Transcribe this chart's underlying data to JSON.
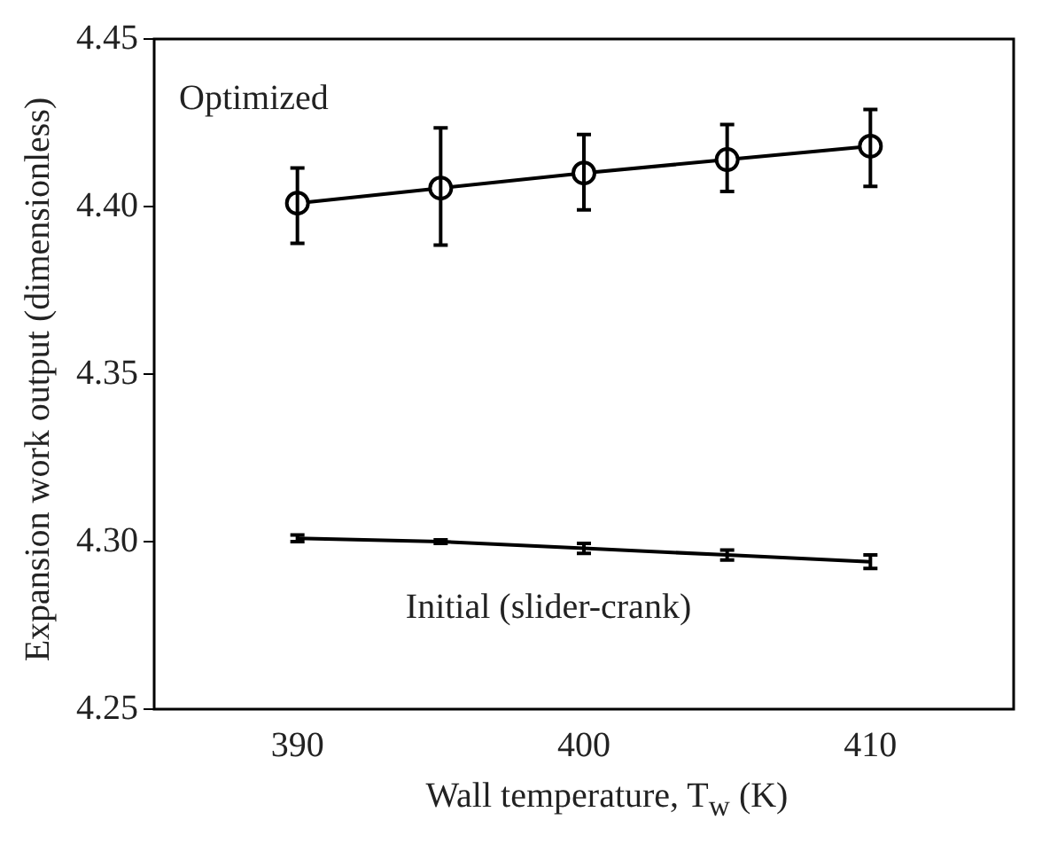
{
  "chart_data": {
    "type": "line",
    "xlabel": "Wall temperature, T$_{w}$ (K)",
    "ylabel": "Expansion work output (dimensionless)",
    "x": [
      390,
      395,
      400,
      405,
      410
    ],
    "series": [
      {
        "name": "Optimized",
        "color": "#000000",
        "marker": "circle",
        "values": [
          4.401,
          4.4055,
          4.41,
          4.414,
          4.418
        ],
        "errors": [
          [
            4.389,
            4.4115
          ],
          [
            4.3885,
            4.4235
          ],
          [
            4.399,
            4.4215
          ],
          [
            4.4045,
            4.4245
          ],
          [
            4.406,
            4.429
          ]
        ]
      },
      {
        "name": "Initial (slider-crank)",
        "color": "#000000",
        "values": [
          4.301,
          4.3,
          4.298,
          4.296,
          4.294
        ],
        "errors": [
          0.001,
          0.0005,
          0.0015,
          0.0015,
          0.002
        ]
      }
    ],
    "xlim": [
      385,
      415
    ],
    "xticks": [
      390,
      400,
      410
    ],
    "ylim": [
      4.25,
      4.45
    ],
    "yticks": [
      {
        "value": 4.25,
        "label": "4.25"
      },
      {
        "value": 4.3,
        "label": "4.30"
      },
      {
        "value": 4.35,
        "label": "4.35"
      },
      {
        "value": 4.4,
        "label": "4.40"
      },
      {
        "value": 4.45,
        "label": "4.45"
      }
    ],
    "grid": false,
    "legend": false,
    "line_style": "solid"
  }
}
